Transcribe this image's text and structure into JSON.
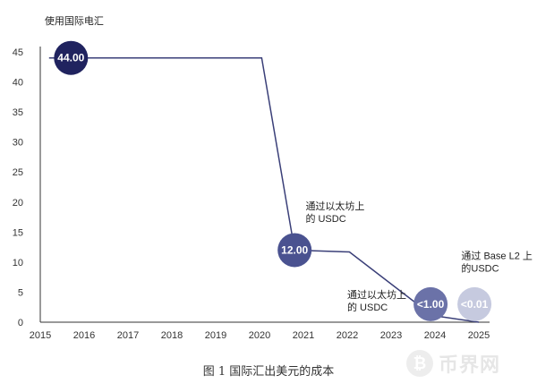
{
  "chart_data": {
    "type": "line",
    "ylabel": "",
    "xlabel": "",
    "xlim": [
      2015,
      2025
    ],
    "ylim": [
      0,
      45
    ],
    "x_ticks": [
      "2015",
      "2016",
      "2017",
      "2018",
      "2019",
      "2020",
      "2021",
      "2022",
      "2023",
      "2024",
      "2025"
    ],
    "y_ticks": [
      "0",
      "5",
      "10",
      "15",
      "20",
      "25",
      "30",
      "35",
      "40",
      "45"
    ],
    "line_points": [
      {
        "x": 2015.2,
        "y": 44
      },
      {
        "x": 2020.05,
        "y": 44
      },
      {
        "x": 2020.8,
        "y": 12
      },
      {
        "x": 2022.05,
        "y": 11.7
      },
      {
        "x": 2023.6,
        "y": 3
      },
      {
        "x": 2024.05,
        "y": 1
      },
      {
        "x": 2025,
        "y": 0
      }
    ],
    "bubbles": [
      {
        "x": 2015.7,
        "y": 44,
        "label": "44.00",
        "color": "#20235f"
      },
      {
        "x": 2020.8,
        "y": 12,
        "label": "12.00",
        "color": "#4a5290"
      },
      {
        "x": 2023.9,
        "y": 3,
        "label": "<1.00",
        "color": "#6b72a8"
      },
      {
        "x": 2024.9,
        "y": 3,
        "label": "<0.01",
        "color": "#c6cadf"
      }
    ],
    "annotations": [
      {
        "lines": [
          "使用国际电汇"
        ],
        "x": 2015.1,
        "y": 49.6
      },
      {
        "lines": [
          "通过以太坊上",
          "的 USDC"
        ],
        "x": 2021.05,
        "y": 18.8
      },
      {
        "lines": [
          "通过以太坊上",
          "的 USDC"
        ],
        "x": 2022.0,
        "y": 4.0
      },
      {
        "lines": [
          "通过 Base L2 上",
          "的USDC"
        ],
        "x": 2024.6,
        "y": 10.5
      }
    ]
  },
  "caption": "图 1 国际汇出美元的成本",
  "watermark": {
    "logo_icon": "bitcoin-icon",
    "text": "币界网"
  }
}
